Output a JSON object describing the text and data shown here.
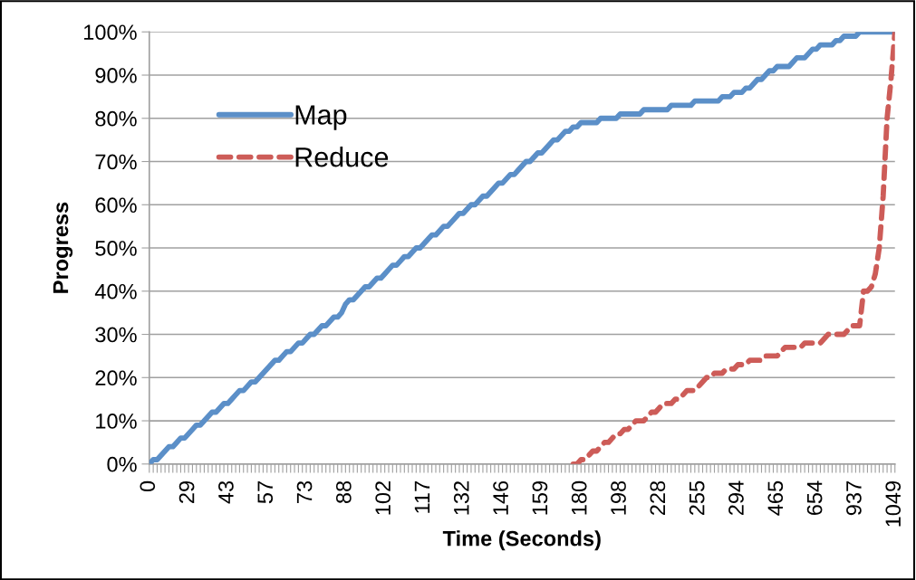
{
  "chart_data": {
    "type": "line",
    "xlabel": "Time (Seconds)",
    "ylabel": "Progress",
    "categories": [
      "0",
      null,
      null,
      null,
      null,
      null,
      null,
      null,
      null,
      null,
      "29",
      null,
      null,
      null,
      null,
      null,
      null,
      null,
      null,
      null,
      "43",
      null,
      null,
      null,
      null,
      null,
      null,
      null,
      null,
      null,
      "57",
      null,
      null,
      null,
      null,
      null,
      null,
      null,
      null,
      null,
      "73",
      null,
      null,
      null,
      null,
      null,
      null,
      null,
      null,
      null,
      "88",
      null,
      null,
      null,
      null,
      null,
      null,
      null,
      null,
      null,
      "102",
      null,
      null,
      null,
      null,
      null,
      null,
      null,
      null,
      null,
      "117",
      null,
      null,
      null,
      null,
      null,
      null,
      null,
      null,
      null,
      "132",
      null,
      null,
      null,
      null,
      null,
      null,
      null,
      null,
      null,
      "146",
      null,
      null,
      null,
      null,
      null,
      null,
      null,
      null,
      null,
      "159",
      null,
      null,
      null,
      null,
      null,
      null,
      null,
      null,
      null,
      "180",
      null,
      null,
      null,
      null,
      null,
      null,
      null,
      null,
      null,
      "198",
      null,
      null,
      null,
      null,
      null,
      null,
      null,
      null,
      null,
      "228",
      null,
      null,
      null,
      null,
      null,
      null,
      null,
      null,
      null,
      "255",
      null,
      null,
      null,
      null,
      null,
      null,
      null,
      null,
      null,
      "294",
      null,
      null,
      null,
      null,
      null,
      null,
      null,
      null,
      null,
      "465",
      null,
      null,
      null,
      null,
      null,
      null,
      null,
      null,
      null,
      "654",
      null,
      null,
      null,
      null,
      null,
      null,
      null,
      null,
      null,
      "937",
      null,
      null,
      null,
      null,
      null,
      null,
      null,
      null,
      null,
      "1049"
    ],
    "series": [
      {
        "name": "Map",
        "color": "#5b8fc8",
        "line_style": "solid",
        "values": [
          0,
          1,
          1,
          2,
          3,
          4,
          4,
          5,
          6,
          6,
          7,
          8,
          9,
          9,
          10,
          11,
          12,
          12,
          13,
          14,
          14,
          15,
          16,
          17,
          17,
          18,
          19,
          19,
          20,
          21,
          22,
          23,
          24,
          24,
          25,
          26,
          26,
          27,
          28,
          28,
          29,
          30,
          30,
          31,
          32,
          32,
          33,
          34,
          34,
          35,
          37,
          38,
          38,
          39,
          40,
          41,
          41,
          42,
          43,
          43,
          44,
          45,
          46,
          46,
          47,
          48,
          48,
          49,
          50,
          50,
          51,
          52,
          53,
          53,
          54,
          55,
          55,
          56,
          57,
          58,
          58,
          59,
          60,
          60,
          61,
          62,
          62,
          63,
          64,
          65,
          65,
          66,
          67,
          67,
          68,
          69,
          70,
          70,
          71,
          72,
          72,
          73,
          74,
          75,
          75,
          76,
          77,
          77,
          78,
          78,
          79,
          79,
          79,
          79,
          79,
          80,
          80,
          80,
          80,
          80,
          81,
          81,
          81,
          81,
          81,
          81,
          82,
          82,
          82,
          82,
          82,
          82,
          82,
          83,
          83,
          83,
          83,
          83,
          83,
          84,
          84,
          84,
          84,
          84,
          84,
          84,
          85,
          85,
          85,
          86,
          86,
          86,
          87,
          87,
          88,
          89,
          89,
          90,
          91,
          91,
          92,
          92,
          92,
          92,
          93,
          94,
          94,
          94,
          95,
          96,
          96,
          97,
          97,
          97,
          97,
          98,
          98,
          99,
          99,
          99,
          99,
          100,
          100,
          100,
          100,
          100,
          100,
          100,
          100,
          100,
          100
        ]
      },
      {
        "name": "Reduce",
        "color": "#cd5c58",
        "line_style": "dashed",
        "values": [
          null,
          null,
          null,
          null,
          null,
          null,
          null,
          null,
          null,
          null,
          null,
          null,
          null,
          null,
          null,
          null,
          null,
          null,
          null,
          null,
          null,
          null,
          null,
          null,
          null,
          null,
          null,
          null,
          null,
          null,
          null,
          null,
          null,
          null,
          null,
          null,
          null,
          null,
          null,
          null,
          null,
          null,
          null,
          null,
          null,
          null,
          null,
          null,
          null,
          null,
          null,
          null,
          null,
          null,
          null,
          null,
          null,
          null,
          null,
          null,
          null,
          null,
          null,
          null,
          null,
          null,
          null,
          null,
          null,
          null,
          null,
          null,
          null,
          null,
          null,
          null,
          null,
          null,
          null,
          null,
          null,
          null,
          null,
          null,
          null,
          null,
          null,
          null,
          null,
          null,
          null,
          null,
          null,
          null,
          null,
          null,
          null,
          null,
          null,
          null,
          null,
          null,
          null,
          null,
          null,
          null,
          null,
          null,
          0,
          0,
          1,
          1,
          2,
          3,
          3,
          4,
          5,
          5,
          6,
          7,
          7,
          8,
          8,
          9,
          10,
          10,
          10,
          11,
          12,
          12,
          13,
          14,
          14,
          14,
          15,
          15,
          16,
          17,
          17,
          17,
          18,
          19,
          20,
          20,
          21,
          21,
          21,
          22,
          22,
          22,
          23,
          23,
          23,
          24,
          24,
          24,
          24,
          25,
          25,
          25,
          25,
          26,
          27,
          27,
          27,
          27,
          27,
          28,
          28,
          28,
          28,
          28,
          29,
          30,
          30,
          30,
          30,
          30,
          31,
          32,
          32,
          32,
          40,
          40,
          41,
          44,
          50,
          62,
          80,
          89,
          100
        ]
      }
    ],
    "ylim": [
      0,
      100
    ],
    "yticks": [
      {
        "value": 0,
        "label": "0%"
      },
      {
        "value": 10,
        "label": "10%"
      },
      {
        "value": 20,
        "label": "20%"
      },
      {
        "value": 30,
        "label": "30%"
      },
      {
        "value": 40,
        "label": "40%"
      },
      {
        "value": 50,
        "label": "50%"
      },
      {
        "value": 60,
        "label": "60%"
      },
      {
        "value": 70,
        "label": "70%"
      },
      {
        "value": 80,
        "label": "80%"
      },
      {
        "value": 90,
        "label": "90%"
      },
      {
        "value": 100,
        "label": "100%"
      }
    ],
    "grid": "y",
    "legend": "top left",
    "marker": "none"
  }
}
